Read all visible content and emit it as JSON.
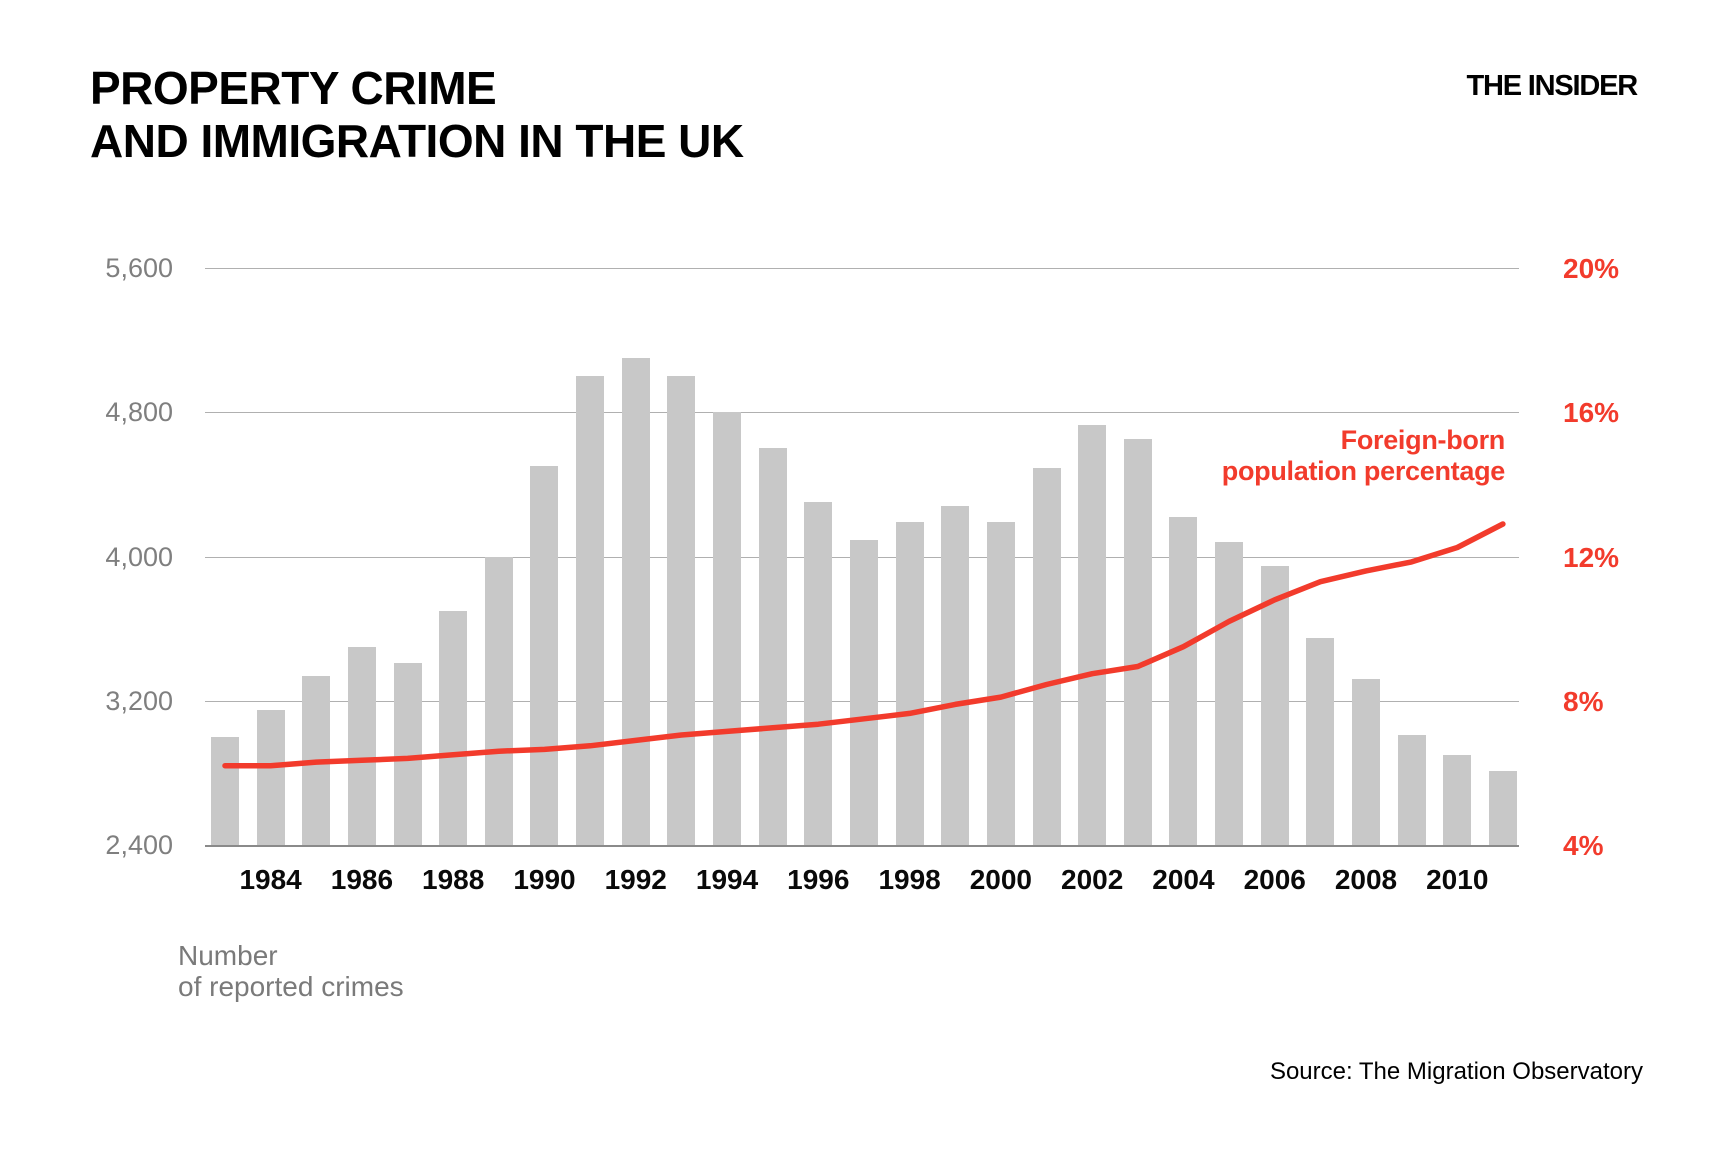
{
  "header": {
    "title_line1": "PROPERTY CRIME",
    "title_line2": "AND IMMIGRATION IN THE UK",
    "brand": "THE INSIDER"
  },
  "footer": {
    "source": "Source: The Migration Observatory"
  },
  "colors": {
    "bar": "#c8c8c8",
    "line": "#f23b2c",
    "grid": "#b0b0b0",
    "axis_text_gray": "#7f7f7f"
  },
  "chart_data": {
    "type": "bar",
    "subtype": "bar-plus-line-dual-axis",
    "x": [
      1983,
      1984,
      1985,
      1986,
      1987,
      1988,
      1989,
      1990,
      1991,
      1992,
      1993,
      1994,
      1995,
      1996,
      1997,
      1998,
      1999,
      2000,
      2001,
      2002,
      2003,
      2004,
      2005,
      2006,
      2007,
      2008,
      2009,
      2010,
      2011
    ],
    "series": [
      {
        "name": "Number of reported crimes",
        "type": "bar",
        "axis": "left",
        "color": "#c8c8c8",
        "values": [
          3000,
          3150,
          3340,
          3500,
          3410,
          3700,
          4000,
          4500,
          5000,
          5100,
          5000,
          4800,
          4600,
          4300,
          4090,
          4190,
          4280,
          4190,
          4490,
          4730,
          4650,
          4220,
          4080,
          3950,
          3550,
          3320,
          3010,
          2900,
          2810
        ]
      },
      {
        "name": "Foreign-born population percentage",
        "type": "line",
        "axis": "right",
        "color": "#f23b2c",
        "values": [
          6.2,
          6.2,
          6.3,
          6.35,
          6.4,
          6.5,
          6.6,
          6.65,
          6.75,
          6.9,
          7.05,
          7.15,
          7.25,
          7.35,
          7.5,
          7.65,
          7.9,
          8.1,
          8.45,
          8.75,
          8.95,
          9.5,
          10.2,
          10.8,
          11.3,
          11.6,
          11.85,
          12.25,
          12.9
        ]
      }
    ],
    "left_axis": {
      "ticks": [
        "2,400",
        "3,200",
        "4,000",
        "4,800",
        "5,600"
      ],
      "range": [
        2400,
        5600
      ]
    },
    "right_axis": {
      "ticks": [
        "4%",
        "8%",
        "12%",
        "16%",
        "20%"
      ],
      "range": [
        4,
        20
      ]
    },
    "x_axis": {
      "tick_years": [
        1984,
        1986,
        1988,
        1990,
        1992,
        1994,
        1996,
        1998,
        2000,
        2002,
        2004,
        2006,
        2008,
        2010
      ]
    },
    "grid": true,
    "annotation": {
      "line1": "Foreign-born",
      "line2": "population percentage"
    },
    "axis_note": {
      "line1": "Number",
      "line2": "of reported crimes"
    }
  }
}
